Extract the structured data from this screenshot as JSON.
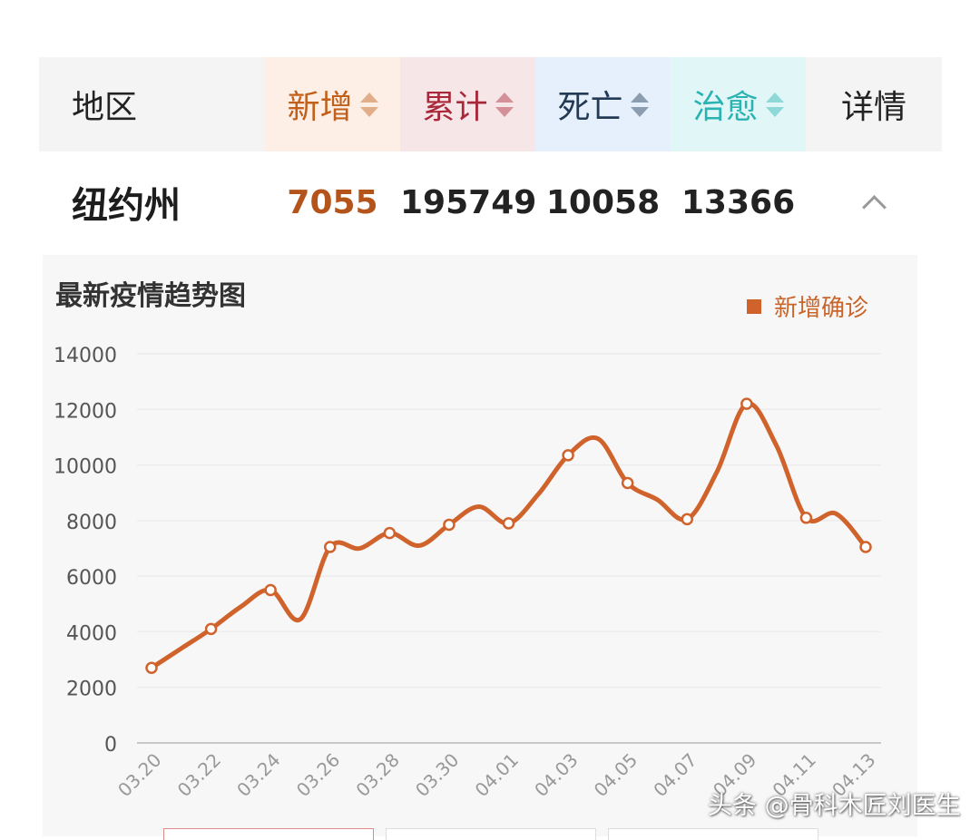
{
  "table": {
    "headers": {
      "region": "地区",
      "new": "新增",
      "total": "累计",
      "death": "死亡",
      "cured": "治愈",
      "detail": "详情"
    },
    "row": {
      "region": "纽约州",
      "new": "7055",
      "total": "195749",
      "death": "10058",
      "cured": "13366"
    }
  },
  "chart_data": {
    "type": "line",
    "title": "最新疫情趋势图",
    "x": [
      "03.20",
      "03.21",
      "03.22",
      "03.23",
      "03.24",
      "03.25",
      "03.26",
      "03.27",
      "03.28",
      "03.29",
      "03.30",
      "03.31",
      "04.01",
      "04.02",
      "04.03",
      "04.04",
      "04.05",
      "04.06",
      "04.07",
      "04.08",
      "04.09",
      "04.10",
      "04.11",
      "04.12",
      "04.13"
    ],
    "x_tick_labels": [
      "03.20",
      "03.22",
      "03.24",
      "03.26",
      "03.28",
      "03.30",
      "04.01",
      "04.03",
      "04.05",
      "04.07",
      "04.09",
      "04.11",
      "04.13"
    ],
    "series": [
      {
        "name": "新增确诊",
        "color": "#d0632c",
        "values": [
          2700,
          3400,
          4100,
          4900,
          5500,
          4450,
          7050,
          7000,
          7550,
          7100,
          7850,
          8500,
          7900,
          8950,
          10350,
          10950,
          9350,
          8750,
          8050,
          9750,
          12200,
          10700,
          8100,
          8250,
          7050
        ]
      }
    ],
    "marker_indices": [
      0,
      2,
      4,
      6,
      8,
      10,
      12,
      14,
      16,
      18,
      20,
      22,
      24
    ],
    "ylim": [
      0,
      14000
    ],
    "yticks": [
      0,
      2000,
      4000,
      6000,
      8000,
      10000,
      12000,
      14000
    ],
    "grid": true,
    "legend": "top-right"
  },
  "watermark": "头条 @骨科木匠刘医生",
  "colors": {
    "new": "#c0601a",
    "total": "#a8283a",
    "death": "#223a55",
    "cured": "#2bb3b3",
    "line": "#d0632c"
  }
}
